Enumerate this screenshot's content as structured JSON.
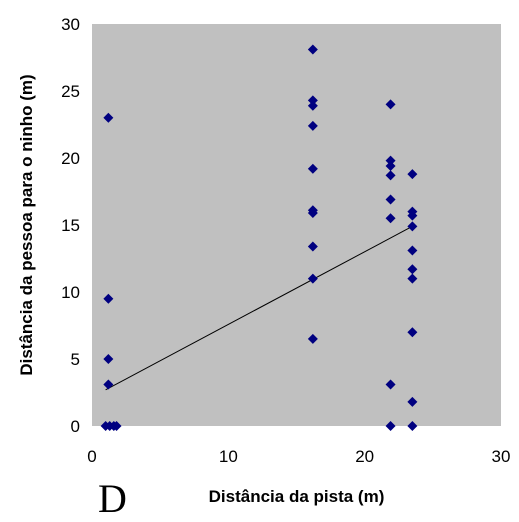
{
  "chart_data": {
    "type": "scatter",
    "xlabel": "Distância da pista (m)",
    "ylabel": "Distância da pessoa para o ninho (m)",
    "xlim": [
      0,
      30
    ],
    "ylim": [
      0,
      30
    ],
    "xticks": [
      0,
      10,
      20,
      30
    ],
    "yticks": [
      0,
      5,
      10,
      15,
      20,
      25,
      30
    ],
    "grid": false,
    "background_color": "#c0c0c0",
    "marker": "diamond",
    "marker_color": "#000080",
    "trendline_color": "#000000",
    "points": [
      [
        1.2,
        23.0
      ],
      [
        1.2,
        9.5
      ],
      [
        1.2,
        5.0
      ],
      [
        1.2,
        3.1
      ],
      [
        1.0,
        0.0
      ],
      [
        1.3,
        0.0
      ],
      [
        1.6,
        0.0
      ],
      [
        1.8,
        0.0
      ],
      [
        16.2,
        28.1
      ],
      [
        16.2,
        24.3
      ],
      [
        16.2,
        23.9
      ],
      [
        16.2,
        22.4
      ],
      [
        16.2,
        19.2
      ],
      [
        16.2,
        16.1
      ],
      [
        16.2,
        15.9
      ],
      [
        16.2,
        13.4
      ],
      [
        16.2,
        11.0
      ],
      [
        16.2,
        6.5
      ],
      [
        21.9,
        24.0
      ],
      [
        21.9,
        19.8
      ],
      [
        21.9,
        19.4
      ],
      [
        21.9,
        18.7
      ],
      [
        21.9,
        16.9
      ],
      [
        21.9,
        15.5
      ],
      [
        21.9,
        3.1
      ],
      [
        21.9,
        0.0
      ],
      [
        23.5,
        18.8
      ],
      [
        23.5,
        16.0
      ],
      [
        23.5,
        15.7
      ],
      [
        23.5,
        14.9
      ],
      [
        23.5,
        13.1
      ],
      [
        23.5,
        11.7
      ],
      [
        23.5,
        11.0
      ],
      [
        23.5,
        7.0
      ],
      [
        23.5,
        1.8
      ],
      [
        23.5,
        0.0
      ]
    ],
    "trendline": {
      "x": [
        1.0,
        23.5
      ],
      "y": [
        2.7,
        14.9
      ]
    }
  },
  "fragment_text": "D"
}
